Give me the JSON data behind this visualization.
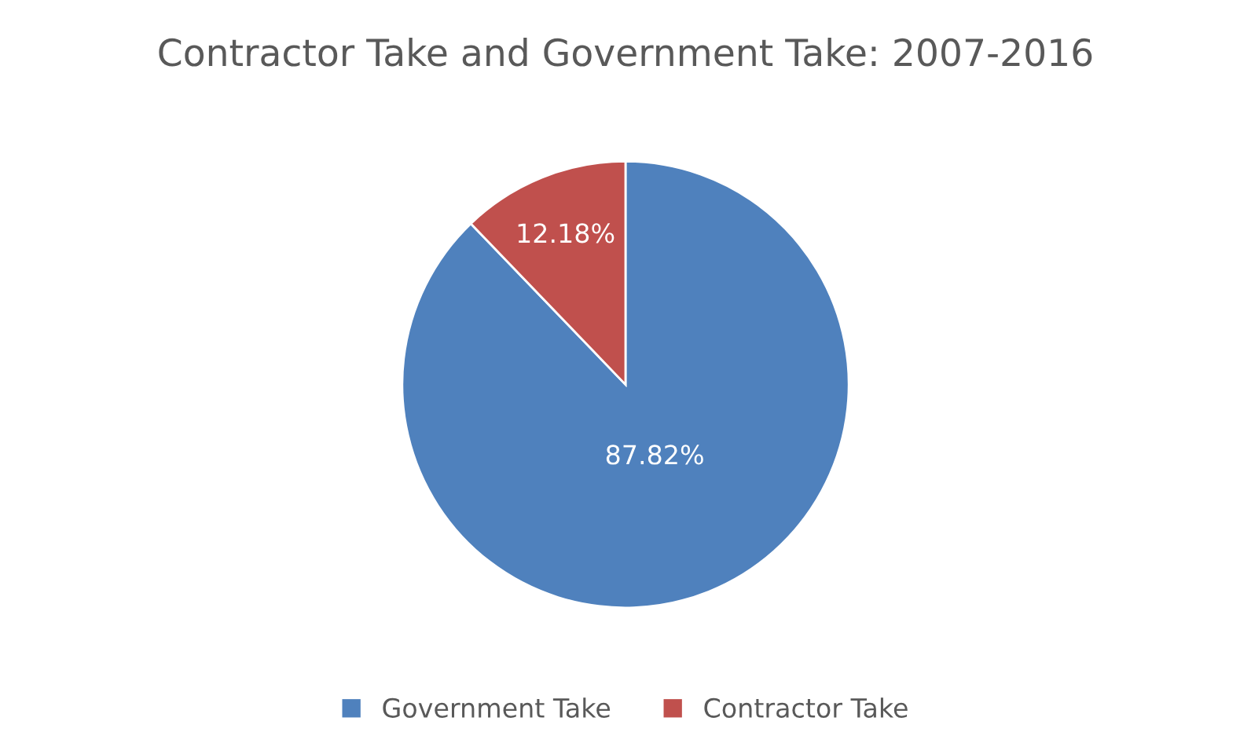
{
  "chart_data": {
    "type": "pie",
    "title": "Contractor Take and Government Take: 2007-2016",
    "categories": [
      "Government Take",
      "Contractor Take"
    ],
    "values": [
      87.82,
      12.18
    ],
    "colors": [
      "#4f81bd",
      "#c0504d"
    ],
    "value_labels": [
      "87.82%",
      "12.18%"
    ],
    "legend": "bottom"
  }
}
